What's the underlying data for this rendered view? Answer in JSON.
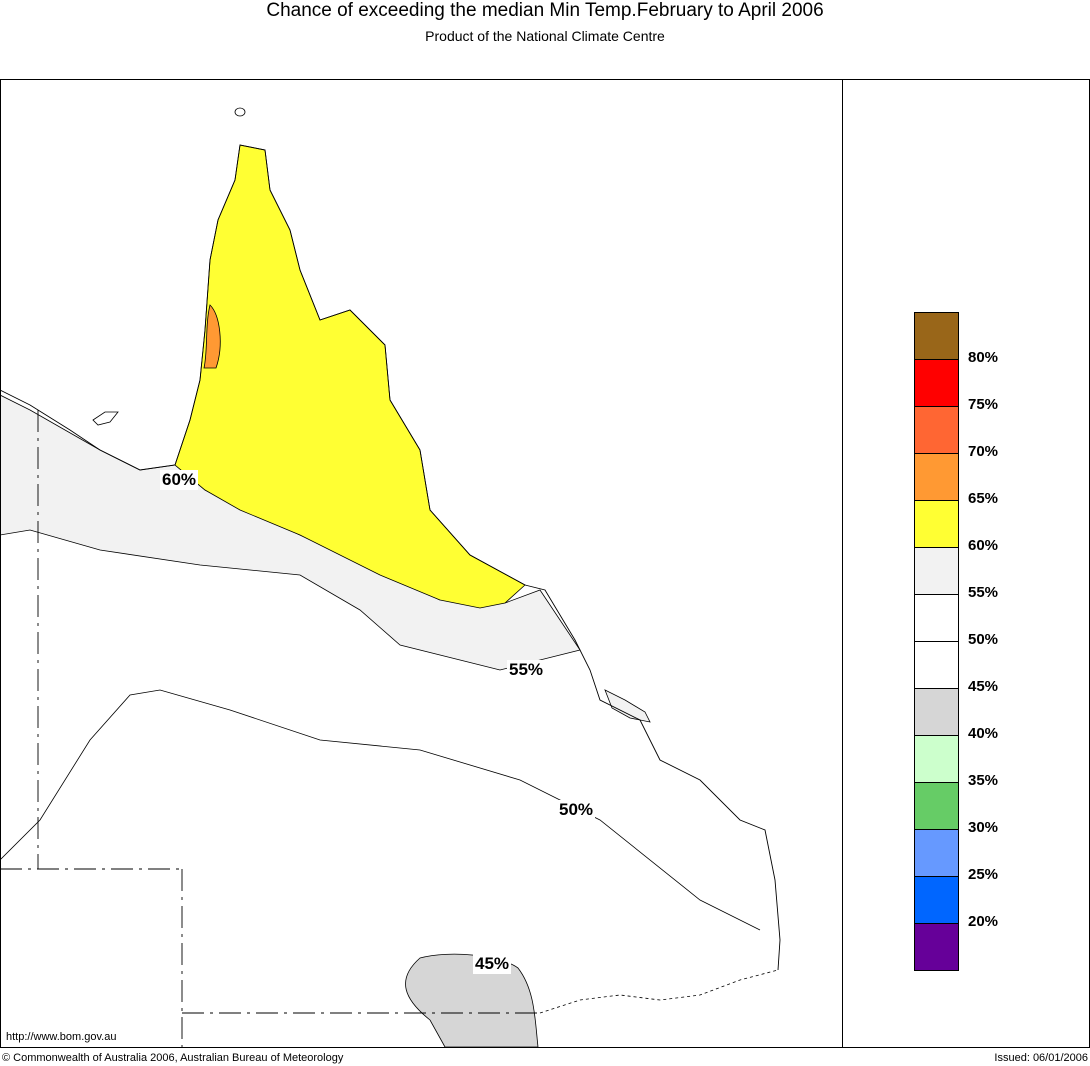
{
  "header": {
    "title": "Chance of exceeding the median Min Temp.February to April 2006",
    "subtitle": "Product of the National Climate Centre"
  },
  "map": {
    "contour_labels": [
      "60%",
      "55%",
      "50%",
      "45%"
    ],
    "regions": [
      {
        "range": "60-65%",
        "color": "#ffff33"
      },
      {
        "range": "65-70%",
        "color": "#ff9933"
      },
      {
        "range": "55-60%",
        "color": "#f2f2f2"
      },
      {
        "range": "40-45%",
        "color": "#d6d6d6"
      }
    ]
  },
  "legend": {
    "colors": [
      "#996619",
      "#ff0000",
      "#ff6633",
      "#ff9933",
      "#ffff33",
      "#f2f2f2",
      "#ffffff",
      "#ffffff",
      "#d6d6d6",
      "#ccffcc",
      "#66cc66",
      "#6699ff",
      "#0066ff",
      "#660099"
    ],
    "labels": [
      "80%",
      "75%",
      "70%",
      "65%",
      "60%",
      "55%",
      "50%",
      "45%",
      "40%",
      "35%",
      "30%",
      "25%",
      "20%"
    ]
  },
  "footer": {
    "url": "http://www.bom.gov.au",
    "copyright": "© Commonwealth of Australia 2006, Australian Bureau of Meteorology",
    "issued": "Issued: 06/01/2006"
  }
}
